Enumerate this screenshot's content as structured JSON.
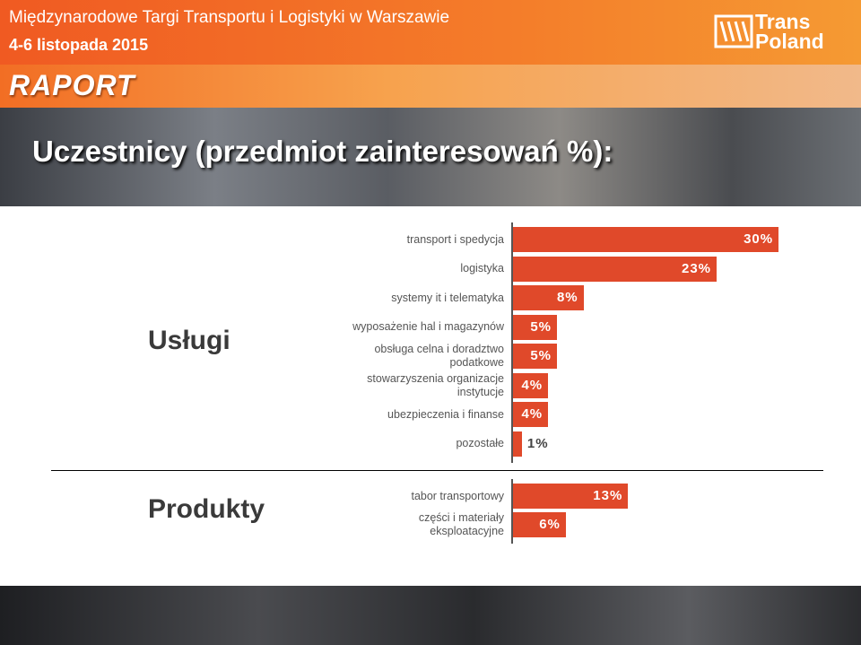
{
  "header": {
    "event": "Międzynarodowe Targi Transportu i Logistyki w Warszawie",
    "dates": "4-6 listopada 2015",
    "logo_top": "Trans",
    "logo_bottom": "Poland"
  },
  "section": "RAPORT",
  "heading": "Uczestnicy (przedmiot zainteresowań %):",
  "chart_data": [
    {
      "type": "bar",
      "orientation": "horizontal",
      "title": "Usługi",
      "color": "#e0492a",
      "categories": [
        "transport i spedycja",
        "logistyka",
        "systemy it i telematyka",
        "wyposażenie hal i magazynów",
        "obsługa celna i doradztwo podatkowe",
        "stowarzyszenia organizacje instytucje",
        "ubezpieczenia i finanse",
        "pozostałe"
      ],
      "values": [
        30,
        23,
        8,
        5,
        5,
        4,
        4,
        1
      ],
      "value_labels": [
        "30%",
        "23%",
        "8%",
        "5%",
        "5%",
        "4%",
        "4%",
        "1%"
      ]
    },
    {
      "type": "bar",
      "orientation": "horizontal",
      "title": "Produkty",
      "color": "#e0492a",
      "categories": [
        "tabor transportowy",
        "części i materiały eksploatacyjne"
      ],
      "values": [
        13,
        6
      ],
      "value_labels": [
        "13%",
        "6%"
      ]
    }
  ]
}
